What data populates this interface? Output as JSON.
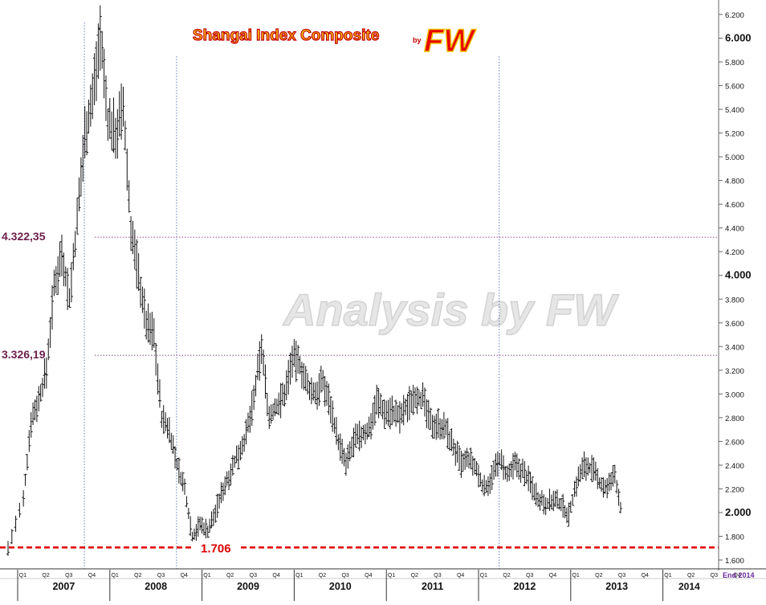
{
  "chart_data": {
    "type": "ohlc",
    "title": "Shangai Index Composite",
    "title_by": "by",
    "title_logo": "FW",
    "watermark": "Analysis by FW",
    "x_range": [
      "2006-Q4",
      "2014-Q4"
    ],
    "ylim": [
      1600,
      6250
    ],
    "y_ticks": [
      "1.600",
      "1.800",
      "2.000",
      "2.200",
      "2.400",
      "2.600",
      "2.800",
      "3.000",
      "3.200",
      "3.400",
      "3.600",
      "3.800",
      "4.000",
      "4.200",
      "4.400",
      "4.600",
      "4.800",
      "5.000",
      "5.200",
      "5.400",
      "5.600",
      "5.800",
      "6.000",
      "6.200"
    ],
    "y_ticks_bold": [
      "2.000",
      "4.000",
      "6.000"
    ],
    "years": [
      "2007",
      "2008",
      "2009",
      "2010",
      "2011",
      "2012",
      "2013",
      "2014"
    ],
    "quarter_labels": [
      "Q1",
      "Q2",
      "Q3",
      "Q4"
    ],
    "end_label": "End 2014",
    "levels": [
      {
        "label": "4.322,35",
        "value": 4322.35
      },
      {
        "label": "3.326,19",
        "value": 3326.19
      },
      {
        "label": "1.706",
        "value": 1706
      }
    ],
    "vertical_markers": [
      "2007-Q4",
      "2008-Q4",
      "2012-Q2"
    ],
    "series_closes": [
      {
        "date": "2006-10",
        "value": 1700
      },
      {
        "date": "2006-12",
        "value": 2100
      },
      {
        "date": "2007-01",
        "value": 2780
      },
      {
        "date": "2007-02",
        "value": 2950
      },
      {
        "date": "2007-03",
        "value": 3200
      },
      {
        "date": "2007-04",
        "value": 3900
      },
      {
        "date": "2007-05",
        "value": 4200
      },
      {
        "date": "2007-06",
        "value": 3800
      },
      {
        "date": "2007-07",
        "value": 4450
      },
      {
        "date": "2007-08",
        "value": 5200
      },
      {
        "date": "2007-09",
        "value": 5500
      },
      {
        "date": "2007-10",
        "value": 6050
      },
      {
        "date": "2007-11",
        "value": 5300
      },
      {
        "date": "2007-12",
        "value": 5200
      },
      {
        "date": "2008-01",
        "value": 5400
      },
      {
        "date": "2008-02",
        "value": 4400
      },
      {
        "date": "2008-03",
        "value": 4000
      },
      {
        "date": "2008-04",
        "value": 3600
      },
      {
        "date": "2008-05",
        "value": 3500
      },
      {
        "date": "2008-06",
        "value": 2800
      },
      {
        "date": "2008-07",
        "value": 2700
      },
      {
        "date": "2008-08",
        "value": 2400
      },
      {
        "date": "2008-09",
        "value": 2200
      },
      {
        "date": "2008-10",
        "value": 1800
      },
      {
        "date": "2008-11",
        "value": 1900
      },
      {
        "date": "2008-12",
        "value": 1850
      },
      {
        "date": "2009-01",
        "value": 2000
      },
      {
        "date": "2009-02",
        "value": 2200
      },
      {
        "date": "2009-03",
        "value": 2350
      },
      {
        "date": "2009-04",
        "value": 2500
      },
      {
        "date": "2009-05",
        "value": 2650
      },
      {
        "date": "2009-06",
        "value": 2950
      },
      {
        "date": "2009-07",
        "value": 3400
      },
      {
        "date": "2009-08",
        "value": 2800
      },
      {
        "date": "2009-09",
        "value": 2900
      },
      {
        "date": "2009-10",
        "value": 3000
      },
      {
        "date": "2009-11",
        "value": 3300
      },
      {
        "date": "2009-12",
        "value": 3250
      },
      {
        "date": "2010-01",
        "value": 3050
      },
      {
        "date": "2010-02",
        "value": 3000
      },
      {
        "date": "2010-03",
        "value": 3100
      },
      {
        "date": "2010-04",
        "value": 2900
      },
      {
        "date": "2010-05",
        "value": 2600
      },
      {
        "date": "2010-06",
        "value": 2400
      },
      {
        "date": "2010-07",
        "value": 2600
      },
      {
        "date": "2010-08",
        "value": 2650
      },
      {
        "date": "2010-09",
        "value": 2700
      },
      {
        "date": "2010-10",
        "value": 2950
      },
      {
        "date": "2010-11",
        "value": 2850
      },
      {
        "date": "2010-12",
        "value": 2850
      },
      {
        "date": "2011-01",
        "value": 2800
      },
      {
        "date": "2011-02",
        "value": 2900
      },
      {
        "date": "2011-03",
        "value": 3000
      },
      {
        "date": "2011-04",
        "value": 2950
      },
      {
        "date": "2011-05",
        "value": 2750
      },
      {
        "date": "2011-06",
        "value": 2750
      },
      {
        "date": "2011-07",
        "value": 2700
      },
      {
        "date": "2011-08",
        "value": 2550
      },
      {
        "date": "2011-09",
        "value": 2400
      },
      {
        "date": "2011-10",
        "value": 2450
      },
      {
        "date": "2011-11",
        "value": 2350
      },
      {
        "date": "2011-12",
        "value": 2200
      },
      {
        "date": "2012-01",
        "value": 2300
      },
      {
        "date": "2012-02",
        "value": 2450
      },
      {
        "date": "2012-03",
        "value": 2300
      },
      {
        "date": "2012-04",
        "value": 2400
      },
      {
        "date": "2012-05",
        "value": 2350
      },
      {
        "date": "2012-06",
        "value": 2250
      },
      {
        "date": "2012-07",
        "value": 2130
      },
      {
        "date": "2012-08",
        "value": 2080
      },
      {
        "date": "2012-09",
        "value": 2100
      },
      {
        "date": "2012-10",
        "value": 2070
      },
      {
        "date": "2012-11",
        "value": 1980
      },
      {
        "date": "2012-12",
        "value": 2250
      },
      {
        "date": "2013-01",
        "value": 2400
      },
      {
        "date": "2013-02",
        "value": 2370
      },
      {
        "date": "2013-03",
        "value": 2250
      },
      {
        "date": "2013-04",
        "value": 2200
      },
      {
        "date": "2013-05",
        "value": 2320
      },
      {
        "date": "2013-06",
        "value": 1950
      }
    ],
    "grid": false,
    "legend": "none"
  }
}
